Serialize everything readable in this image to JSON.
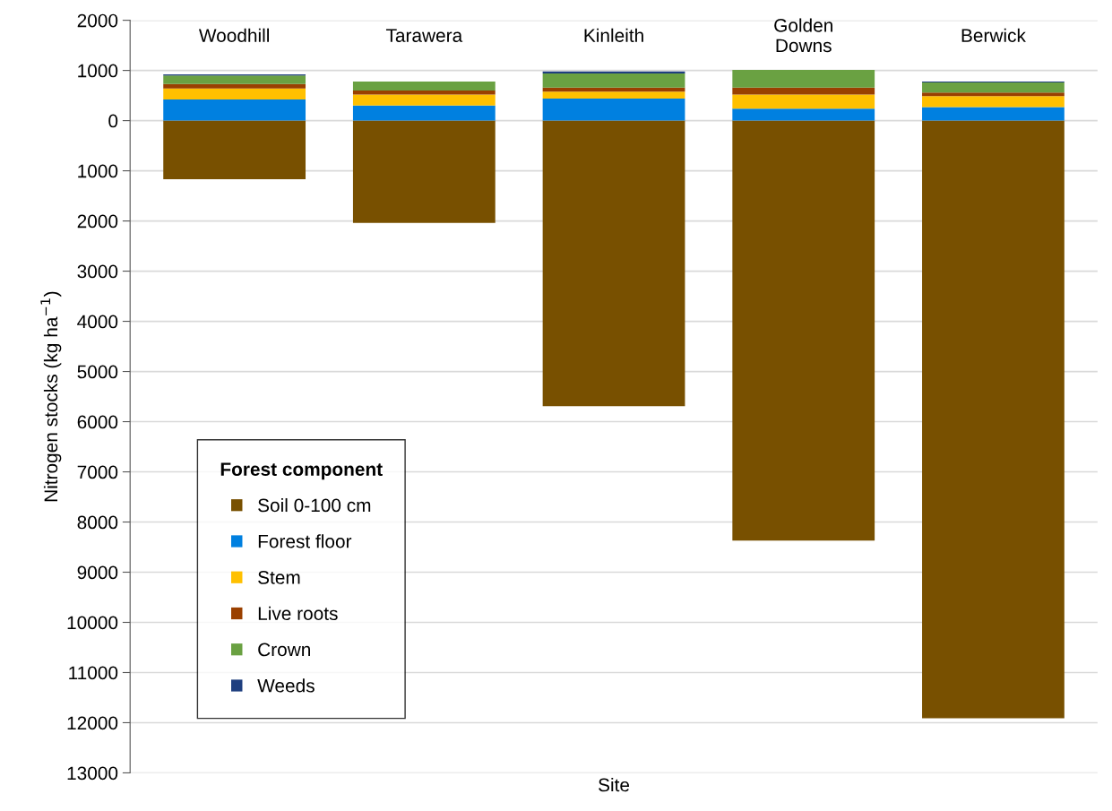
{
  "chart_data": {
    "type": "bar",
    "stacked": true,
    "xlabel": "Site",
    "ylabel": "Nitrogen stocks (kg ha$^{−1}$)",
    "legend_title": "Forest component",
    "legend": "bottom left",
    "grid": "y",
    "categories": [
      "Woodhill",
      "Tarawera",
      "Kinleith",
      "Golden\nDowns",
      "Berwick"
    ],
    "series": [
      {
        "name": "Soil 0-100 cm",
        "color": "#785000",
        "values": [
          -1170,
          -2040,
          -5690,
          -8370,
          -11910
        ]
      },
      {
        "name": "Forest floor",
        "color": "#0080e0",
        "values": [
          420,
          300,
          440,
          240,
          270
        ]
      },
      {
        "name": "Stem",
        "color": "#ffc000",
        "values": [
          220,
          220,
          140,
          280,
          220
        ]
      },
      {
        "name": "Live roots",
        "color": "#9a4000",
        "values": [
          90,
          80,
          80,
          140,
          70
        ]
      },
      {
        "name": "Crown",
        "color": "#6aa142",
        "values": [
          170,
          180,
          280,
          350,
          200
        ]
      },
      {
        "name": "Weeds",
        "color": "#1f3f7f",
        "values": [
          20,
          null,
          40,
          null,
          20
        ]
      }
    ],
    "ylim": [
      -13000,
      2000
    ],
    "yticks": [
      2000,
      1000,
      0,
      {
        "value": -1000,
        "label": "1000"
      },
      {
        "value": -2000,
        "label": "2000"
      },
      {
        "value": -3000,
        "label": "3000"
      },
      {
        "value": -4000,
        "label": "4000"
      },
      {
        "value": -5000,
        "label": "5000"
      },
      {
        "value": -6000,
        "label": "6000"
      },
      {
        "value": -7000,
        "label": "7000"
      },
      {
        "value": -8000,
        "label": "8000"
      },
      {
        "value": -9000,
        "label": "9000"
      },
      {
        "value": -10000,
        "label": "10000"
      },
      {
        "value": -11000,
        "label": "11000"
      },
      {
        "value": -12000,
        "label": "12000"
      },
      {
        "value": -13000,
        "label": "13000"
      }
    ]
  }
}
